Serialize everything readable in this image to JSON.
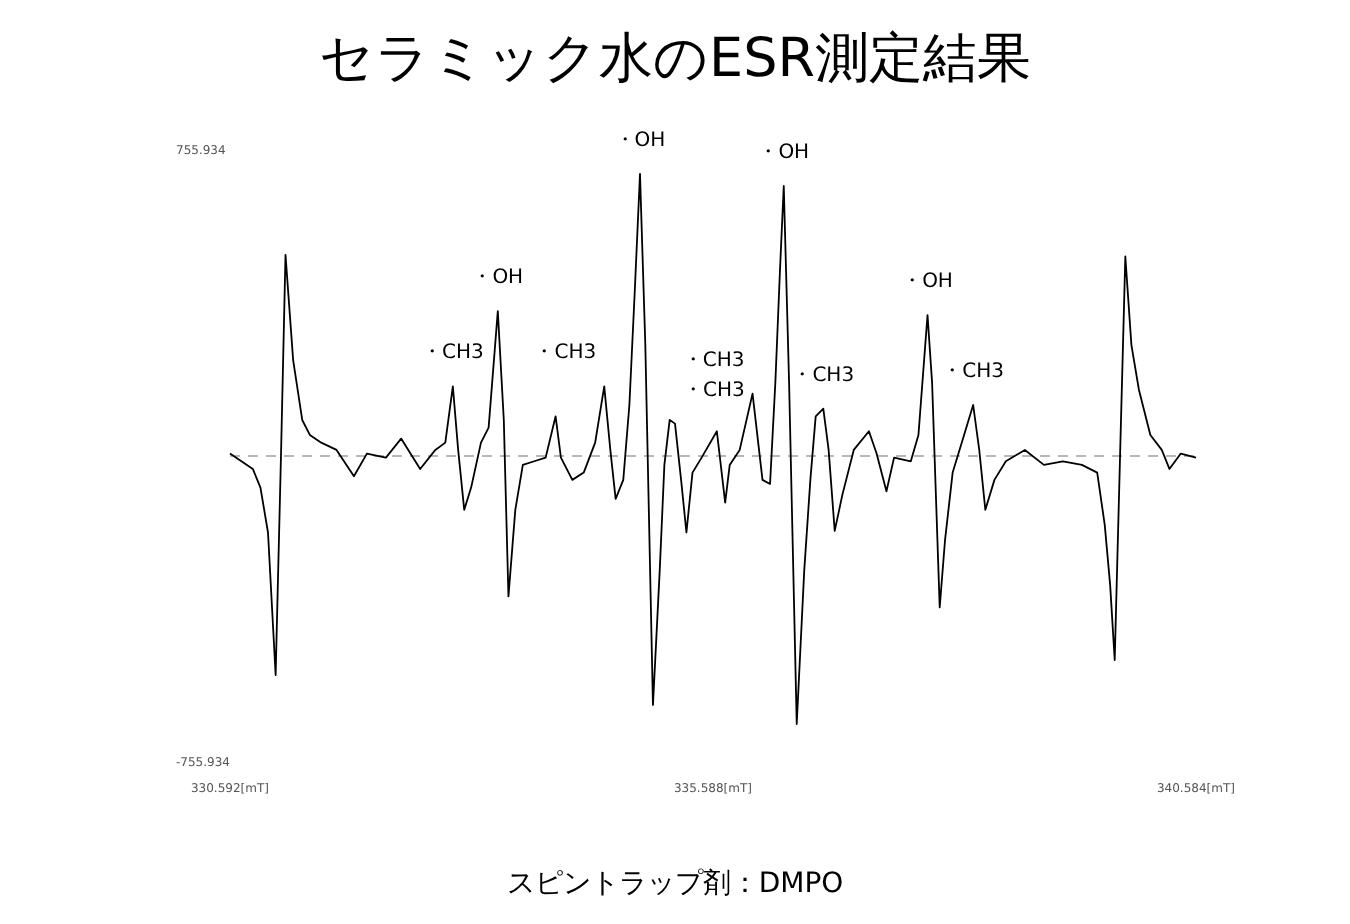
{
  "chart_data": {
    "type": "line",
    "title": "セラミック水のESR測定結果",
    "xlim": [
      330.592,
      340.584
    ],
    "ylim": [
      -755.934,
      755.934
    ],
    "xticks": [
      {
        "value": 330.592,
        "label": "330.592[mT]"
      },
      {
        "value": 335.588,
        "label": "335.588[mT]"
      },
      {
        "value": 340.584,
        "label": "340.584[mT]"
      }
    ],
    "yticks": [
      755.934,
      -755.934
    ],
    "grid": false,
    "marker": "none",
    "line_style": "solid",
    "ref_lines": [
      {
        "axis": "y",
        "value": 0,
        "color": "#a0a0a0",
        "line_style": "dashed"
      }
    ],
    "annotations": [
      {
        "text": "・OH",
        "x": 333.362,
        "y": 358
      },
      {
        "text": "・OH",
        "x": 334.833,
        "y": 697
      },
      {
        "text": "・OH",
        "x": 336.32,
        "y": 667
      },
      {
        "text": "・OH",
        "x": 337.807,
        "y": 348
      },
      {
        "text": "・CH3",
        "x": 332.897,
        "y": 172
      },
      {
        "text": "・CH3",
        "x": 334.463,
        "y": 172
      },
      {
        "text": "・CH3",
        "x": 335.195,
        "y": 80
      },
      {
        "text": "・CH3",
        "x": 335.997,
        "y": 154
      },
      {
        "text": "・CH3",
        "x": 336.729,
        "y": 117
      },
      {
        "text": "・CH3",
        "x": 338.279,
        "y": 126
      },
      "スピントラップ剤：DMPO"
    ],
    "series": [
      {
        "color": "#000000",
        "x": [
          330.592,
          330.71,
          330.828,
          330.907,
          330.985,
          331.064,
          331.119,
          331.166,
          331.245,
          331.339,
          331.418,
          331.536,
          331.694,
          331.874,
          332.008,
          332.205,
          332.362,
          332.559,
          332.716,
          332.819,
          332.897,
          332.952,
          333.015,
          333.086,
          333.188,
          333.267,
          333.362,
          333.424,
          333.472,
          333.543,
          333.621,
          333.739,
          333.857,
          333.96,
          334.015,
          334.133,
          334.251,
          334.369,
          334.463,
          334.526,
          334.581,
          334.66,
          334.723,
          334.778,
          334.833,
          334.888,
          334.967,
          335.037,
          335.085,
          335.14,
          335.195,
          335.258,
          335.313,
          335.376,
          335.47,
          335.628,
          335.714,
          335.761,
          335.864,
          335.997,
          336.1,
          336.178,
          336.233,
          336.281,
          336.32,
          336.375,
          336.454,
          336.532,
          336.595,
          336.65,
          336.729,
          336.784,
          336.847,
          336.926,
          337.044,
          337.201,
          337.28,
          337.382,
          337.461,
          337.634,
          337.713,
          337.807,
          337.854,
          337.933,
          337.988,
          338.067,
          338.185,
          338.279,
          338.342,
          338.405,
          338.499,
          338.617,
          338.814,
          339.011,
          339.207,
          339.404,
          339.562,
          339.64,
          339.696,
          339.743,
          339.798,
          339.853,
          339.916,
          339.994,
          340.112,
          340.23,
          340.309,
          340.427,
          340.584
        ],
        "values": [
          6,
          -13,
          -32,
          -78,
          -189,
          -541,
          -4,
          497,
          237,
          89,
          52,
          33,
          15,
          -50,
          6,
          -4,
          43,
          -32,
          15,
          33,
          172,
          15,
          -133,
          -78,
          33,
          70,
          358,
          89,
          -347,
          -133,
          -22,
          -13,
          -4,
          98,
          -4,
          -59,
          -41,
          33,
          172,
          15,
          -106,
          -59,
          126,
          404,
          697,
          274,
          -615,
          -282,
          -22,
          89,
          80,
          -59,
          -189,
          -41,
          -4,
          61,
          -115,
          -22,
          15,
          154,
          -59,
          -69,
          182,
          460,
          667,
          182,
          -662,
          -282,
          -59,
          98,
          117,
          15,
          -185,
          -96,
          15,
          61,
          6,
          -87,
          -4,
          -13,
          52,
          348,
          182,
          -374,
          -208,
          -41,
          52,
          126,
          15,
          -133,
          -59,
          -13,
          15,
          -22,
          -13,
          -22,
          -41,
          -170,
          -319,
          -504,
          -4,
          493,
          274,
          163,
          52,
          15,
          -32,
          6,
          -4
        ]
      }
    ]
  }
}
